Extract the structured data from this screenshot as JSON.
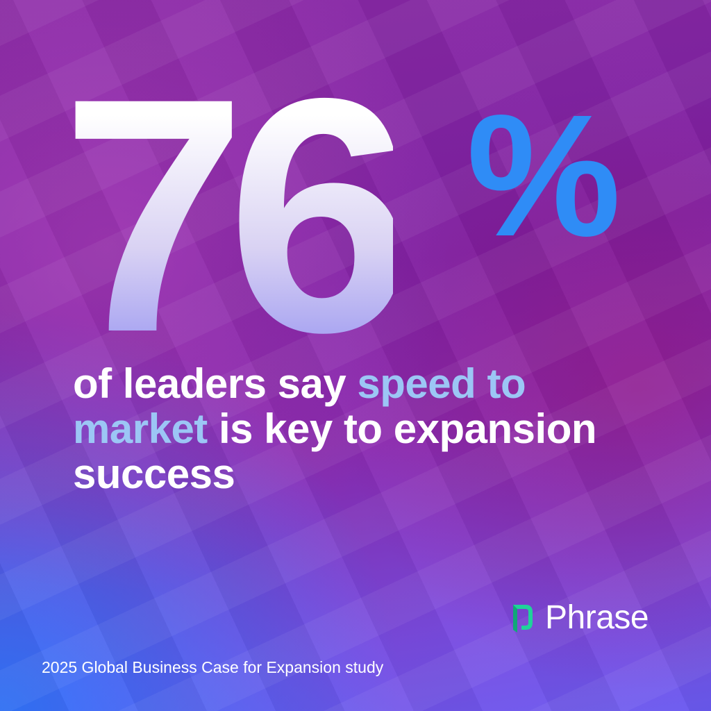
{
  "stat": {
    "number": "76",
    "unit": "%"
  },
  "headline": {
    "lead": "of leaders say",
    "highlight": "speed to market",
    "rest": "is key to expansion success"
  },
  "brand": {
    "name": "Phrase"
  },
  "source": "2025 Global Business Case for Expansion study"
}
